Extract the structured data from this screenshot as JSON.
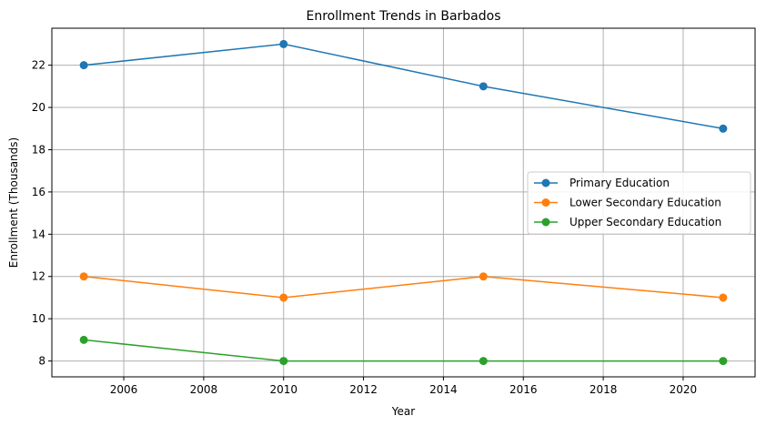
{
  "chart_data": {
    "type": "line",
    "title": "Enrollment Trends in Barbados",
    "xlabel": "Year",
    "ylabel": "Enrollment (Thousands)",
    "x": [
      2005,
      2010,
      2015,
      2021
    ],
    "xlim": [
      2004.2,
      2021.8
    ],
    "ylim": [
      7.25,
      23.75
    ],
    "xticks": [
      2006,
      2008,
      2010,
      2012,
      2014,
      2016,
      2018,
      2020
    ],
    "yticks": [
      8,
      10,
      12,
      14,
      16,
      18,
      20,
      22
    ],
    "grid": true,
    "legend_position": "center-right",
    "series": [
      {
        "name": "Primary Education",
        "values": [
          22,
          23,
          21,
          19
        ],
        "color": "#1f77b4"
      },
      {
        "name": "Lower Secondary Education",
        "values": [
          12,
          11,
          12,
          11
        ],
        "color": "#ff7f0e"
      },
      {
        "name": "Upper Secondary Education",
        "values": [
          9,
          8,
          8,
          8
        ],
        "color": "#2ca02c"
      }
    ]
  }
}
